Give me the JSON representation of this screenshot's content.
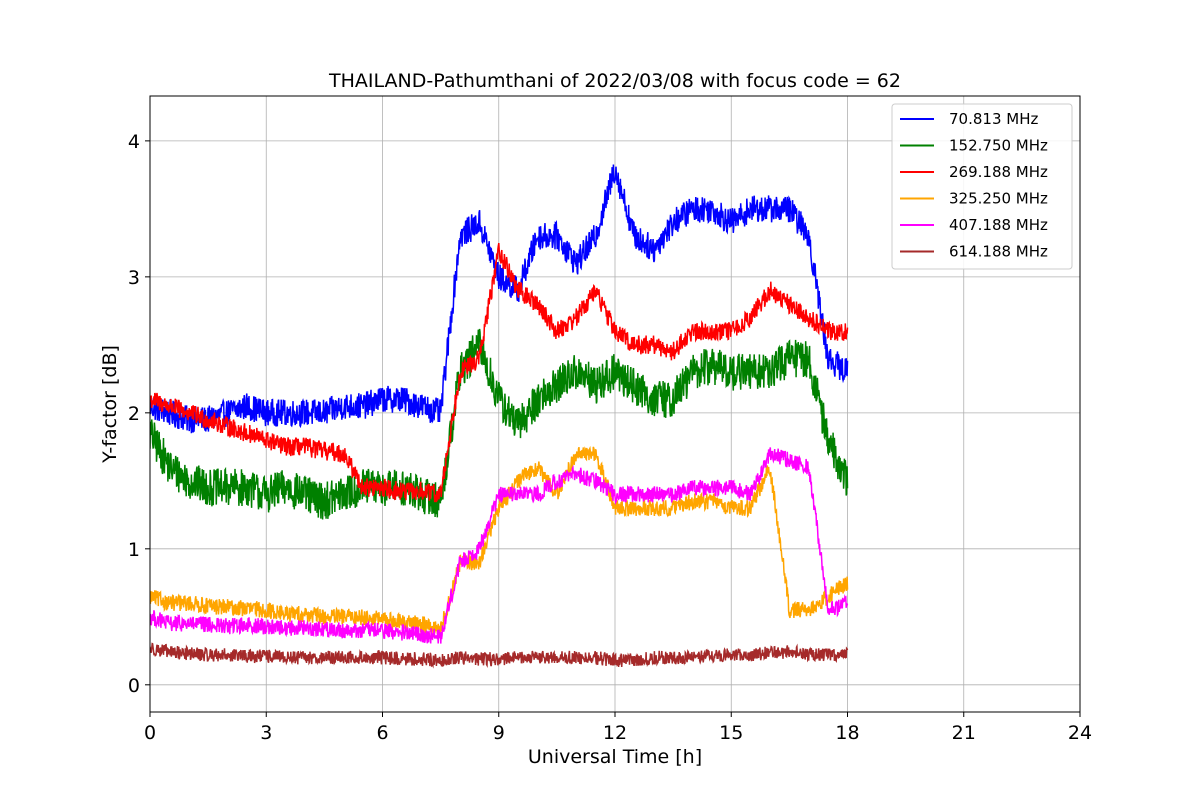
{
  "chart_data": {
    "type": "line",
    "title": "THAILAND-Pathumthani of 2022/03/08 with focus code = 62",
    "xlabel": "Universal Time [h]",
    "ylabel": "Y-factor [dB]",
    "xlim": [
      0,
      24
    ],
    "ylim": [
      -0.2,
      4.33
    ],
    "xticks": [
      0,
      3,
      6,
      9,
      12,
      15,
      18,
      21,
      24
    ],
    "yticks": [
      0,
      1,
      2,
      3,
      4
    ],
    "grid": true,
    "legend_position": "top-right",
    "x_step": 0.5,
    "series": [
      {
        "name": " 70.813 MHz",
        "color": "#0000ff",
        "noise": 0.1,
        "values": [
          2.05,
          2.0,
          1.95,
          1.95,
          2.0,
          2.05,
          2.0,
          2.0,
          2.0,
          2.0,
          2.05,
          2.05,
          2.1,
          2.1,
          2.05,
          2.0,
          3.3,
          3.4,
          3.0,
          2.9,
          3.3,
          3.3,
          3.1,
          3.3,
          3.8,
          3.3,
          3.2,
          3.4,
          3.5,
          3.5,
          3.4,
          3.5,
          3.5,
          3.5,
          3.3,
          2.4,
          2.3
        ]
      },
      {
        "name": "152.750 MHz",
        "color": "#008000",
        "noise": 0.14,
        "values": [
          1.85,
          1.6,
          1.5,
          1.45,
          1.45,
          1.45,
          1.4,
          1.45,
          1.4,
          1.35,
          1.4,
          1.45,
          1.45,
          1.45,
          1.4,
          1.35,
          2.3,
          2.5,
          2.1,
          1.9,
          2.1,
          2.2,
          2.3,
          2.2,
          2.3,
          2.2,
          2.1,
          2.1,
          2.3,
          2.35,
          2.3,
          2.3,
          2.3,
          2.4,
          2.4,
          1.8,
          1.5
        ]
      },
      {
        "name": "269.188 MHz",
        "color": "#ff0000",
        "noise": 0.07,
        "values": [
          2.1,
          2.05,
          2.0,
          1.95,
          1.9,
          1.85,
          1.8,
          1.75,
          1.75,
          1.72,
          1.7,
          1.45,
          1.45,
          1.42,
          1.42,
          1.4,
          2.3,
          2.4,
          3.2,
          2.9,
          2.8,
          2.6,
          2.7,
          2.9,
          2.6,
          2.5,
          2.5,
          2.45,
          2.6,
          2.6,
          2.6,
          2.7,
          2.9,
          2.8,
          2.7,
          2.6,
          2.6
        ]
      },
      {
        "name": "325.250 MHz",
        "color": "#ffa500",
        "noise": 0.06,
        "values": [
          0.65,
          0.6,
          0.6,
          0.58,
          0.57,
          0.56,
          0.55,
          0.52,
          0.52,
          0.5,
          0.5,
          0.5,
          0.48,
          0.46,
          0.45,
          0.4,
          0.9,
          0.9,
          1.3,
          1.5,
          1.6,
          1.4,
          1.7,
          1.7,
          1.3,
          1.3,
          1.3,
          1.3,
          1.35,
          1.35,
          1.3,
          1.3,
          1.6,
          0.55,
          0.55,
          0.65,
          0.75
        ]
      },
      {
        "name": "407.188 MHz",
        "color": "#ff00ff",
        "noise": 0.06,
        "values": [
          0.5,
          0.45,
          0.45,
          0.44,
          0.43,
          0.44,
          0.43,
          0.42,
          0.42,
          0.41,
          0.4,
          0.4,
          0.4,
          0.38,
          0.37,
          0.35,
          0.9,
          1.0,
          1.4,
          1.4,
          1.4,
          1.5,
          1.55,
          1.5,
          1.4,
          1.4,
          1.4,
          1.4,
          1.45,
          1.45,
          1.45,
          1.4,
          1.7,
          1.65,
          1.6,
          0.55,
          0.6
        ]
      },
      {
        "name": "614.188 MHz",
        "color": "#a52a2a",
        "noise": 0.05,
        "values": [
          0.27,
          0.24,
          0.23,
          0.22,
          0.22,
          0.21,
          0.21,
          0.2,
          0.2,
          0.2,
          0.2,
          0.2,
          0.2,
          0.19,
          0.19,
          0.18,
          0.2,
          0.19,
          0.19,
          0.2,
          0.2,
          0.2,
          0.2,
          0.2,
          0.18,
          0.18,
          0.2,
          0.2,
          0.2,
          0.21,
          0.22,
          0.22,
          0.24,
          0.24,
          0.23,
          0.22,
          0.22
        ]
      }
    ]
  }
}
